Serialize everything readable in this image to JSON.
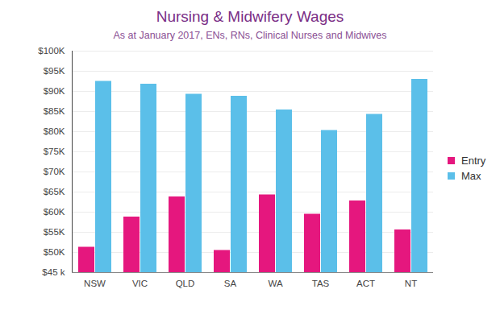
{
  "chart_data": {
    "type": "bar",
    "title": "Nursing & Midwifery Wages",
    "subtitle": "As at January 2017, ENs, RNs, Clinical Nurses and Midwives",
    "categories": [
      "NSW",
      "VIC",
      "QLD",
      "SA",
      "WA",
      "TAS",
      "ACT",
      "NT"
    ],
    "series": [
      {
        "name": "Entry",
        "color": "#e5177e",
        "values": [
          51300,
          58800,
          63800,
          50500,
          64300,
          59500,
          62800,
          55600
        ]
      },
      {
        "name": "Max",
        "color": "#5bbfe9",
        "values": [
          92500,
          91800,
          89300,
          88800,
          85400,
          80300,
          84300,
          93000
        ]
      }
    ],
    "ylim": [
      45000,
      100000
    ],
    "yticks": [
      {
        "value": 45000,
        "label": "$45 k"
      },
      {
        "value": 50000,
        "label": "$50K"
      },
      {
        "value": 55000,
        "label": "$55K"
      },
      {
        "value": 60000,
        "label": "$60K"
      },
      {
        "value": 65000,
        "label": "$65K"
      },
      {
        "value": 70000,
        "label": "$70K"
      },
      {
        "value": 75000,
        "label": "$75K"
      },
      {
        "value": 80000,
        "label": "$80K"
      },
      {
        "value": 85000,
        "label": "$85K"
      },
      {
        "value": 90000,
        "label": "$90K"
      },
      {
        "value": 95000,
        "label": "$95K"
      },
      {
        "value": 100000,
        "label": "$100K"
      }
    ],
    "grid": true,
    "legend": "right"
  }
}
